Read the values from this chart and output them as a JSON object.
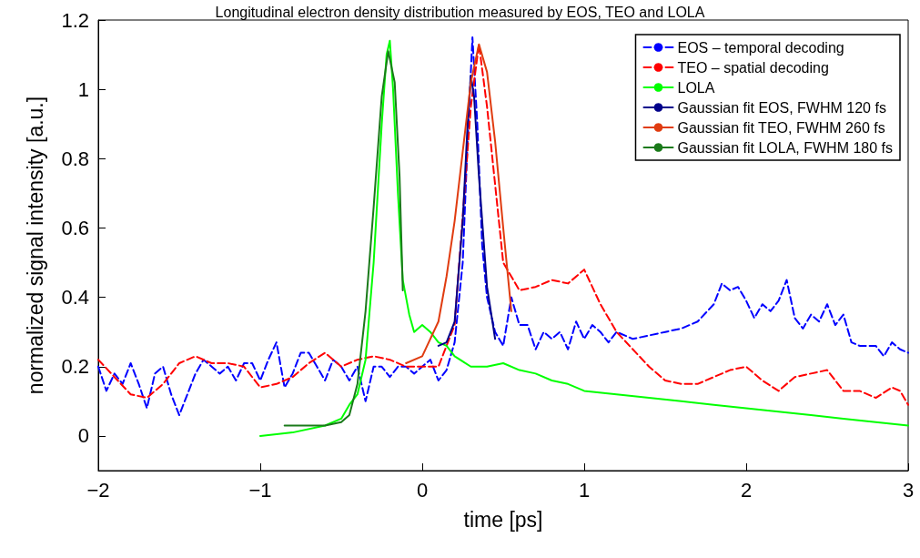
{
  "chart_data": {
    "type": "line",
    "title": "Longitudinal electron density distribution measured by EOS, TEO and LOLA",
    "xlabel": "time [ps]",
    "ylabel": "normalized signal intensity [a.u.]",
    "xlim": [
      -2,
      3
    ],
    "xticks": [
      -2,
      -1,
      0,
      1,
      2,
      3
    ],
    "ylim": [
      -0.1,
      1.2
    ],
    "yticks": [
      0,
      0.2,
      0.4,
      0.6,
      0.8,
      1,
      1.2
    ],
    "grid": false,
    "legend": "top right",
    "marker": "none",
    "series": [
      {
        "name": "EOS – temporal decoding",
        "color": "#0000ff",
        "line_style": "dashed",
        "x": [
          -2,
          -1.95,
          -1.9,
          -1.85,
          -1.8,
          -1.75,
          -1.7,
          -1.65,
          -1.6,
          -1.55,
          -1.5,
          -1.45,
          -1.4,
          -1.35,
          -1.3,
          -1.25,
          -1.2,
          -1.15,
          -1.1,
          -1.05,
          -1,
          -0.95,
          -0.9,
          -0.85,
          -0.8,
          -0.75,
          -0.7,
          -0.65,
          -0.6,
          -0.55,
          -0.5,
          -0.45,
          -0.4,
          -0.35,
          -0.3,
          -0.25,
          -0.2,
          -0.15,
          -0.1,
          -0.05,
          0,
          0.05,
          0.1,
          0.15,
          0.2,
          0.25,
          0.28,
          0.31,
          0.34,
          0.37,
          0.4,
          0.45,
          0.5,
          0.55,
          0.6,
          0.65,
          0.7,
          0.75,
          0.8,
          0.85,
          0.9,
          0.95,
          1,
          1.05,
          1.1,
          1.15,
          1.2,
          1.3,
          1.4,
          1.5,
          1.6,
          1.7,
          1.8,
          1.85,
          1.9,
          1.95,
          2,
          2.05,
          2.1,
          2.15,
          2.2,
          2.25,
          2.3,
          2.35,
          2.4,
          2.45,
          2.5,
          2.55,
          2.6,
          2.65,
          2.7,
          2.8,
          2.85,
          2.9,
          2.95,
          3
        ],
        "values": [
          0.2,
          0.13,
          0.18,
          0.15,
          0.21,
          0.15,
          0.08,
          0.18,
          0.2,
          0.12,
          0.06,
          0.12,
          0.18,
          0.22,
          0.2,
          0.18,
          0.2,
          0.16,
          0.21,
          0.21,
          0.16,
          0.22,
          0.27,
          0.14,
          0.18,
          0.24,
          0.24,
          0.2,
          0.16,
          0.22,
          0.2,
          0.16,
          0.2,
          0.1,
          0.2,
          0.2,
          0.17,
          0.2,
          0.2,
          0.18,
          0.2,
          0.22,
          0.16,
          0.19,
          0.27,
          0.5,
          0.85,
          1.15,
          0.9,
          0.55,
          0.4,
          0.3,
          0.26,
          0.4,
          0.32,
          0.32,
          0.25,
          0.3,
          0.28,
          0.3,
          0.25,
          0.33,
          0.28,
          0.32,
          0.3,
          0.27,
          0.3,
          0.28,
          0.29,
          0.3,
          0.31,
          0.33,
          0.38,
          0.44,
          0.42,
          0.43,
          0.39,
          0.34,
          0.38,
          0.36,
          0.39,
          0.45,
          0.34,
          0.31,
          0.35,
          0.33,
          0.38,
          0.32,
          0.35,
          0.27,
          0.26,
          0.26,
          0.23,
          0.27,
          0.25,
          0.24
        ]
      },
      {
        "name": "TEO – spatial decoding",
        "color": "#ff0000",
        "line_style": "dashed",
        "x": [
          -2,
          -1.9,
          -1.8,
          -1.7,
          -1.6,
          -1.5,
          -1.4,
          -1.3,
          -1.2,
          -1.1,
          -1,
          -0.9,
          -0.8,
          -0.7,
          -0.6,
          -0.5,
          -0.4,
          -0.3,
          -0.2,
          -0.1,
          0,
          0.1,
          0.2,
          0.3,
          0.35,
          0.4,
          0.5,
          0.6,
          0.7,
          0.8,
          0.9,
          1,
          1.1,
          1.2,
          1.3,
          1.4,
          1.5,
          1.6,
          1.7,
          1.8,
          1.9,
          2,
          2.1,
          2.2,
          2.3,
          2.4,
          2.5,
          2.6,
          2.7,
          2.8,
          2.9,
          2.95,
          3
        ],
        "values": [
          0.22,
          0.17,
          0.12,
          0.11,
          0.15,
          0.21,
          0.23,
          0.21,
          0.21,
          0.2,
          0.14,
          0.15,
          0.17,
          0.21,
          0.24,
          0.2,
          0.22,
          0.23,
          0.22,
          0.2,
          0.2,
          0.2,
          0.32,
          0.95,
          1.13,
          0.95,
          0.5,
          0.42,
          0.43,
          0.45,
          0.44,
          0.48,
          0.38,
          0.3,
          0.25,
          0.2,
          0.16,
          0.15,
          0.15,
          0.17,
          0.19,
          0.2,
          0.16,
          0.13,
          0.17,
          0.18,
          0.19,
          0.13,
          0.13,
          0.11,
          0.14,
          0.13,
          0.09
        ]
      },
      {
        "name": "LOLA",
        "color": "#00ff00",
        "line_style": "solid",
        "x": [
          -1,
          -0.8,
          -0.6,
          -0.5,
          -0.45,
          -0.4,
          -0.35,
          -0.3,
          -0.25,
          -0.22,
          -0.2,
          -0.18,
          -0.15,
          -0.12,
          -0.08,
          -0.05,
          0,
          0.05,
          0.1,
          0.15,
          0.2,
          0.3,
          0.4,
          0.5,
          0.6,
          0.7,
          0.8,
          0.9,
          1,
          1.2,
          1.4,
          1.6,
          1.8,
          2,
          2.2,
          2.4,
          2.6,
          2.8,
          3
        ],
        "values": [
          0,
          0.01,
          0.03,
          0.05,
          0.09,
          0.12,
          0.22,
          0.5,
          0.9,
          1.1,
          1.14,
          1,
          0.7,
          0.45,
          0.35,
          0.3,
          0.32,
          0.3,
          0.27,
          0.26,
          0.23,
          0.2,
          0.2,
          0.21,
          0.19,
          0.18,
          0.16,
          0.15,
          0.13,
          0.12,
          0.11,
          0.1,
          0.09,
          0.08,
          0.07,
          0.06,
          0.05,
          0.04,
          0.03
        ]
      },
      {
        "name": "Gaussian fit EOS, FWHM 120 fs",
        "color": "#00008b",
        "line_style": "solid",
        "x": [
          0.1,
          0.15,
          0.2,
          0.25,
          0.28,
          0.3,
          0.32,
          0.35,
          0.4,
          0.45
        ],
        "values": [
          0.26,
          0.27,
          0.33,
          0.62,
          0.9,
          1.04,
          0.98,
          0.75,
          0.43,
          0.28
        ]
      },
      {
        "name": "Gaussian fit TEO, FWHM 260 fs",
        "color": "#e03c10",
        "line_style": "solid",
        "x": [
          -0.1,
          0,
          0.1,
          0.15,
          0.2,
          0.25,
          0.3,
          0.35,
          0.4,
          0.45,
          0.5,
          0.55
        ],
        "values": [
          0.21,
          0.23,
          0.33,
          0.46,
          0.62,
          0.82,
          1.02,
          1.13,
          1.05,
          0.85,
          0.6,
          0.36
        ]
      },
      {
        "name": "Gaussian fit LOLA, FWHM 180 fs",
        "color": "#1a7a1a",
        "line_style": "solid",
        "x": [
          -0.85,
          -0.6,
          -0.5,
          -0.45,
          -0.4,
          -0.35,
          -0.3,
          -0.25,
          -0.21,
          -0.17,
          -0.14,
          -0.12
        ],
        "values": [
          0.03,
          0.03,
          0.04,
          0.06,
          0.15,
          0.36,
          0.66,
          0.98,
          1.11,
          1.02,
          0.75,
          0.42
        ]
      }
    ]
  }
}
